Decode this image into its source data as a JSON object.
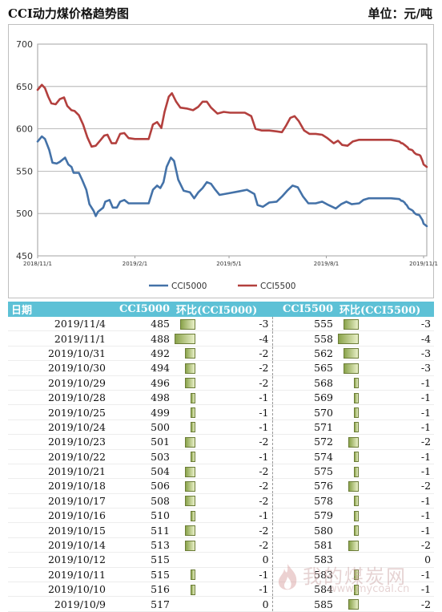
{
  "header": {
    "title": "CCI动力煤价格趋势图",
    "unit": "单位：元/吨"
  },
  "chart_data": {
    "type": "line",
    "title": "CCI动力煤价格趋势图",
    "ylim": [
      450,
      700
    ],
    "yticks": [
      450,
      500,
      550,
      600,
      650,
      700
    ],
    "xticks": [
      "2018/11/1",
      "2019/2/1",
      "2019/5/1",
      "2019/8/1",
      "2019/11/1"
    ],
    "x_range": [
      "2018/11/1",
      "2019/11/4"
    ],
    "grid": "horizontal",
    "legend_position": "bottom",
    "colors": {
      "CCI5000": "#4472a8",
      "CCI5500": "#b3403e"
    },
    "series": [
      {
        "name": "CCI5000",
        "points": [
          [
            "2018/11/1",
            585
          ],
          [
            "2018/11/5",
            591
          ],
          [
            "2018/11/8",
            588
          ],
          [
            "2018/11/12",
            575
          ],
          [
            "2018/11/15",
            560
          ],
          [
            "2018/11/19",
            559
          ],
          [
            "2018/11/22",
            561
          ],
          [
            "2018/11/27",
            566
          ],
          [
            "2018/11/30",
            558
          ],
          [
            "2018/12/3",
            555
          ],
          [
            "2018/12/5",
            548
          ],
          [
            "2018/12/10",
            548
          ],
          [
            "2018/12/13",
            540
          ],
          [
            "2018/12/17",
            528
          ],
          [
            "2018/12/20",
            511
          ],
          [
            "2018/12/24",
            503
          ],
          [
            "2018/12/26",
            497
          ],
          [
            "2018/12/28",
            502
          ],
          [
            "2019/1/2",
            507
          ],
          [
            "2019/1/4",
            514
          ],
          [
            "2019/1/8",
            516
          ],
          [
            "2019/1/11",
            507
          ],
          [
            "2019/1/15",
            507
          ],
          [
            "2019/1/18",
            514
          ],
          [
            "2019/1/22",
            516
          ],
          [
            "2019/1/26",
            512
          ],
          [
            "2019/2/1",
            512
          ],
          [
            "2019/2/10",
            512
          ],
          [
            "2019/2/14",
            512
          ],
          [
            "2019/2/18",
            528
          ],
          [
            "2019/2/22",
            533
          ],
          [
            "2019/2/25",
            530
          ],
          [
            "2019/2/28",
            537
          ],
          [
            "2019/3/3",
            555
          ],
          [
            "2019/3/7",
            566
          ],
          [
            "2019/3/10",
            562
          ],
          [
            "2019/3/14",
            540
          ],
          [
            "2019/3/19",
            527
          ],
          [
            "2019/3/25",
            525
          ],
          [
            "2019/3/29",
            518
          ],
          [
            "2019/4/2",
            525
          ],
          [
            "2019/4/6",
            530
          ],
          [
            "2019/4/10",
            537
          ],
          [
            "2019/4/14",
            535
          ],
          [
            "2019/4/18",
            528
          ],
          [
            "2019/4/22",
            522
          ],
          [
            "2019/5/1",
            524
          ],
          [
            "2019/5/10",
            526
          ],
          [
            "2019/5/18",
            528
          ],
          [
            "2019/5/25",
            523
          ],
          [
            "2019/5/28",
            510
          ],
          [
            "2019/6/2",
            508
          ],
          [
            "2019/6/8",
            513
          ],
          [
            "2019/6/15",
            514
          ],
          [
            "2019/6/20",
            520
          ],
          [
            "2019/6/25",
            527
          ],
          [
            "2019/6/30",
            533
          ],
          [
            "2019/7/5",
            531
          ],
          [
            "2019/7/10",
            520
          ],
          [
            "2019/7/15",
            512
          ],
          [
            "2019/7/22",
            512
          ],
          [
            "2019/7/28",
            514
          ],
          [
            "2019/8/3",
            510
          ],
          [
            "2019/8/10",
            506
          ],
          [
            "2019/8/15",
            511
          ],
          [
            "2019/8/20",
            514
          ],
          [
            "2019/8/25",
            511
          ],
          [
            "2019/9/1",
            512
          ],
          [
            "2019/9/5",
            516
          ],
          [
            "2019/9/10",
            518
          ],
          [
            "2019/9/20",
            518
          ],
          [
            "2019/10/1",
            518
          ],
          [
            "2019/10/9",
            517
          ],
          [
            "2019/10/10",
            516
          ],
          [
            "2019/10/11",
            515
          ],
          [
            "2019/10/12",
            515
          ],
          [
            "2019/10/14",
            513
          ],
          [
            "2019/10/15",
            511
          ],
          [
            "2019/10/16",
            510
          ],
          [
            "2019/10/17",
            508
          ],
          [
            "2019/10/18",
            506
          ],
          [
            "2019/10/21",
            504
          ],
          [
            "2019/10/22",
            503
          ],
          [
            "2019/10/23",
            501
          ],
          [
            "2019/10/24",
            500
          ],
          [
            "2019/10/25",
            499
          ],
          [
            "2019/10/28",
            498
          ],
          [
            "2019/10/29",
            496
          ],
          [
            "2019/10/30",
            494
          ],
          [
            "2019/10/31",
            492
          ],
          [
            "2019/11/1",
            488
          ],
          [
            "2019/11/4",
            485
          ]
        ]
      },
      {
        "name": "CCI5500",
        "points": [
          [
            "2018/11/1",
            646
          ],
          [
            "2018/11/5",
            652
          ],
          [
            "2018/11/8",
            648
          ],
          [
            "2018/11/11",
            638
          ],
          [
            "2018/11/14",
            630
          ],
          [
            "2018/11/18",
            629
          ],
          [
            "2018/11/22",
            635
          ],
          [
            "2018/11/26",
            637
          ],
          [
            "2018/11/29",
            627
          ],
          [
            "2018/12/3",
            622
          ],
          [
            "2018/12/6",
            621
          ],
          [
            "2018/12/10",
            616
          ],
          [
            "2018/12/14",
            605
          ],
          [
            "2018/12/18",
            590
          ],
          [
            "2018/12/22",
            579
          ],
          [
            "2018/12/26",
            580
          ],
          [
            "2018/12/30",
            586
          ],
          [
            "2019/1/3",
            592
          ],
          [
            "2019/1/6",
            593
          ],
          [
            "2019/1/10",
            583
          ],
          [
            "2019/1/14",
            583
          ],
          [
            "2019/1/18",
            594
          ],
          [
            "2019/1/22",
            595
          ],
          [
            "2019/1/26",
            589
          ],
          [
            "2019/2/1",
            588
          ],
          [
            "2019/2/8",
            588
          ],
          [
            "2019/2/14",
            588
          ],
          [
            "2019/2/18",
            605
          ],
          [
            "2019/2/22",
            608
          ],
          [
            "2019/2/26",
            601
          ],
          [
            "2019/3/1",
            620
          ],
          [
            "2019/3/5",
            638
          ],
          [
            "2019/3/8",
            642
          ],
          [
            "2019/3/12",
            632
          ],
          [
            "2019/3/16",
            625
          ],
          [
            "2019/3/22",
            624
          ],
          [
            "2019/3/28",
            622
          ],
          [
            "2019/4/2",
            626
          ],
          [
            "2019/4/6",
            632
          ],
          [
            "2019/4/10",
            632
          ],
          [
            "2019/4/14",
            625
          ],
          [
            "2019/4/20",
            618
          ],
          [
            "2019/4/26",
            620
          ],
          [
            "2019/5/2",
            619
          ],
          [
            "2019/5/8",
            619
          ],
          [
            "2019/5/16",
            619
          ],
          [
            "2019/5/22",
            615
          ],
          [
            "2019/5/26",
            600
          ],
          [
            "2019/6/1",
            598
          ],
          [
            "2019/6/8",
            598
          ],
          [
            "2019/6/15",
            597
          ],
          [
            "2019/6/20",
            596
          ],
          [
            "2019/6/24",
            604
          ],
          [
            "2019/6/28",
            613
          ],
          [
            "2019/7/2",
            615
          ],
          [
            "2019/7/6",
            609
          ],
          [
            "2019/7/11",
            598
          ],
          [
            "2019/7/16",
            594
          ],
          [
            "2019/7/22",
            594
          ],
          [
            "2019/7/28",
            593
          ],
          [
            "2019/8/2",
            589
          ],
          [
            "2019/8/8",
            583
          ],
          [
            "2019/8/12",
            586
          ],
          [
            "2019/8/16",
            581
          ],
          [
            "2019/8/21",
            580
          ],
          [
            "2019/8/26",
            585
          ],
          [
            "2019/9/1",
            587
          ],
          [
            "2019/9/10",
            587
          ],
          [
            "2019/9/20",
            587
          ],
          [
            "2019/10/1",
            587
          ],
          [
            "2019/10/9",
            585
          ],
          [
            "2019/10/10",
            584
          ],
          [
            "2019/10/11",
            583
          ],
          [
            "2019/10/12",
            583
          ],
          [
            "2019/10/14",
            581
          ],
          [
            "2019/10/15",
            580
          ],
          [
            "2019/10/16",
            579
          ],
          [
            "2019/10/17",
            578
          ],
          [
            "2019/10/18",
            576
          ],
          [
            "2019/10/21",
            575
          ],
          [
            "2019/10/22",
            574
          ],
          [
            "2019/10/23",
            572
          ],
          [
            "2019/10/24",
            571
          ],
          [
            "2019/10/25",
            570
          ],
          [
            "2019/10/28",
            569
          ],
          [
            "2019/10/29",
            568
          ],
          [
            "2019/10/30",
            565
          ],
          [
            "2019/10/31",
            562
          ],
          [
            "2019/11/1",
            558
          ],
          [
            "2019/11/4",
            555
          ]
        ]
      }
    ]
  },
  "table": {
    "headers": [
      "日期",
      "CCI5000",
      "环比(CCI5000)",
      "CCI5500",
      "环比(CCI5500)"
    ],
    "rows": [
      [
        "2019/11/4",
        "485",
        "-3",
        "555",
        "-3"
      ],
      [
        "2019/11/1",
        "488",
        "-4",
        "558",
        "-4"
      ],
      [
        "2019/10/31",
        "492",
        "-2",
        "562",
        "-3"
      ],
      [
        "2019/10/30",
        "494",
        "-2",
        "565",
        "-3"
      ],
      [
        "2019/10/29",
        "496",
        "-2",
        "568",
        "-1"
      ],
      [
        "2019/10/28",
        "498",
        "-1",
        "569",
        "-1"
      ],
      [
        "2019/10/25",
        "499",
        "-1",
        "570",
        "-1"
      ],
      [
        "2019/10/24",
        "500",
        "-1",
        "571",
        "-1"
      ],
      [
        "2019/10/23",
        "501",
        "-2",
        "572",
        "-2"
      ],
      [
        "2019/10/22",
        "503",
        "-1",
        "574",
        "-1"
      ],
      [
        "2019/10/21",
        "504",
        "-2",
        "575",
        "-1"
      ],
      [
        "2019/10/18",
        "506",
        "-2",
        "576",
        "-2"
      ],
      [
        "2019/10/17",
        "508",
        "-2",
        "578",
        "-1"
      ],
      [
        "2019/10/16",
        "510",
        "-1",
        "579",
        "-1"
      ],
      [
        "2019/10/15",
        "511",
        "-2",
        "580",
        "-1"
      ],
      [
        "2019/10/14",
        "513",
        "-2",
        "581",
        "-2"
      ],
      [
        "2019/10/12",
        "515",
        "0",
        "583",
        "0"
      ],
      [
        "2019/10/11",
        "515",
        "-1",
        "583",
        "-1"
      ],
      [
        "2019/10/10",
        "516",
        "-1",
        "584",
        "-1"
      ],
      [
        "2019/10/9",
        "517",
        "0",
        "585",
        "-2"
      ]
    ]
  },
  "watermark": {
    "text": "我的煤炭网",
    "url": "www.mycoal.cn"
  }
}
